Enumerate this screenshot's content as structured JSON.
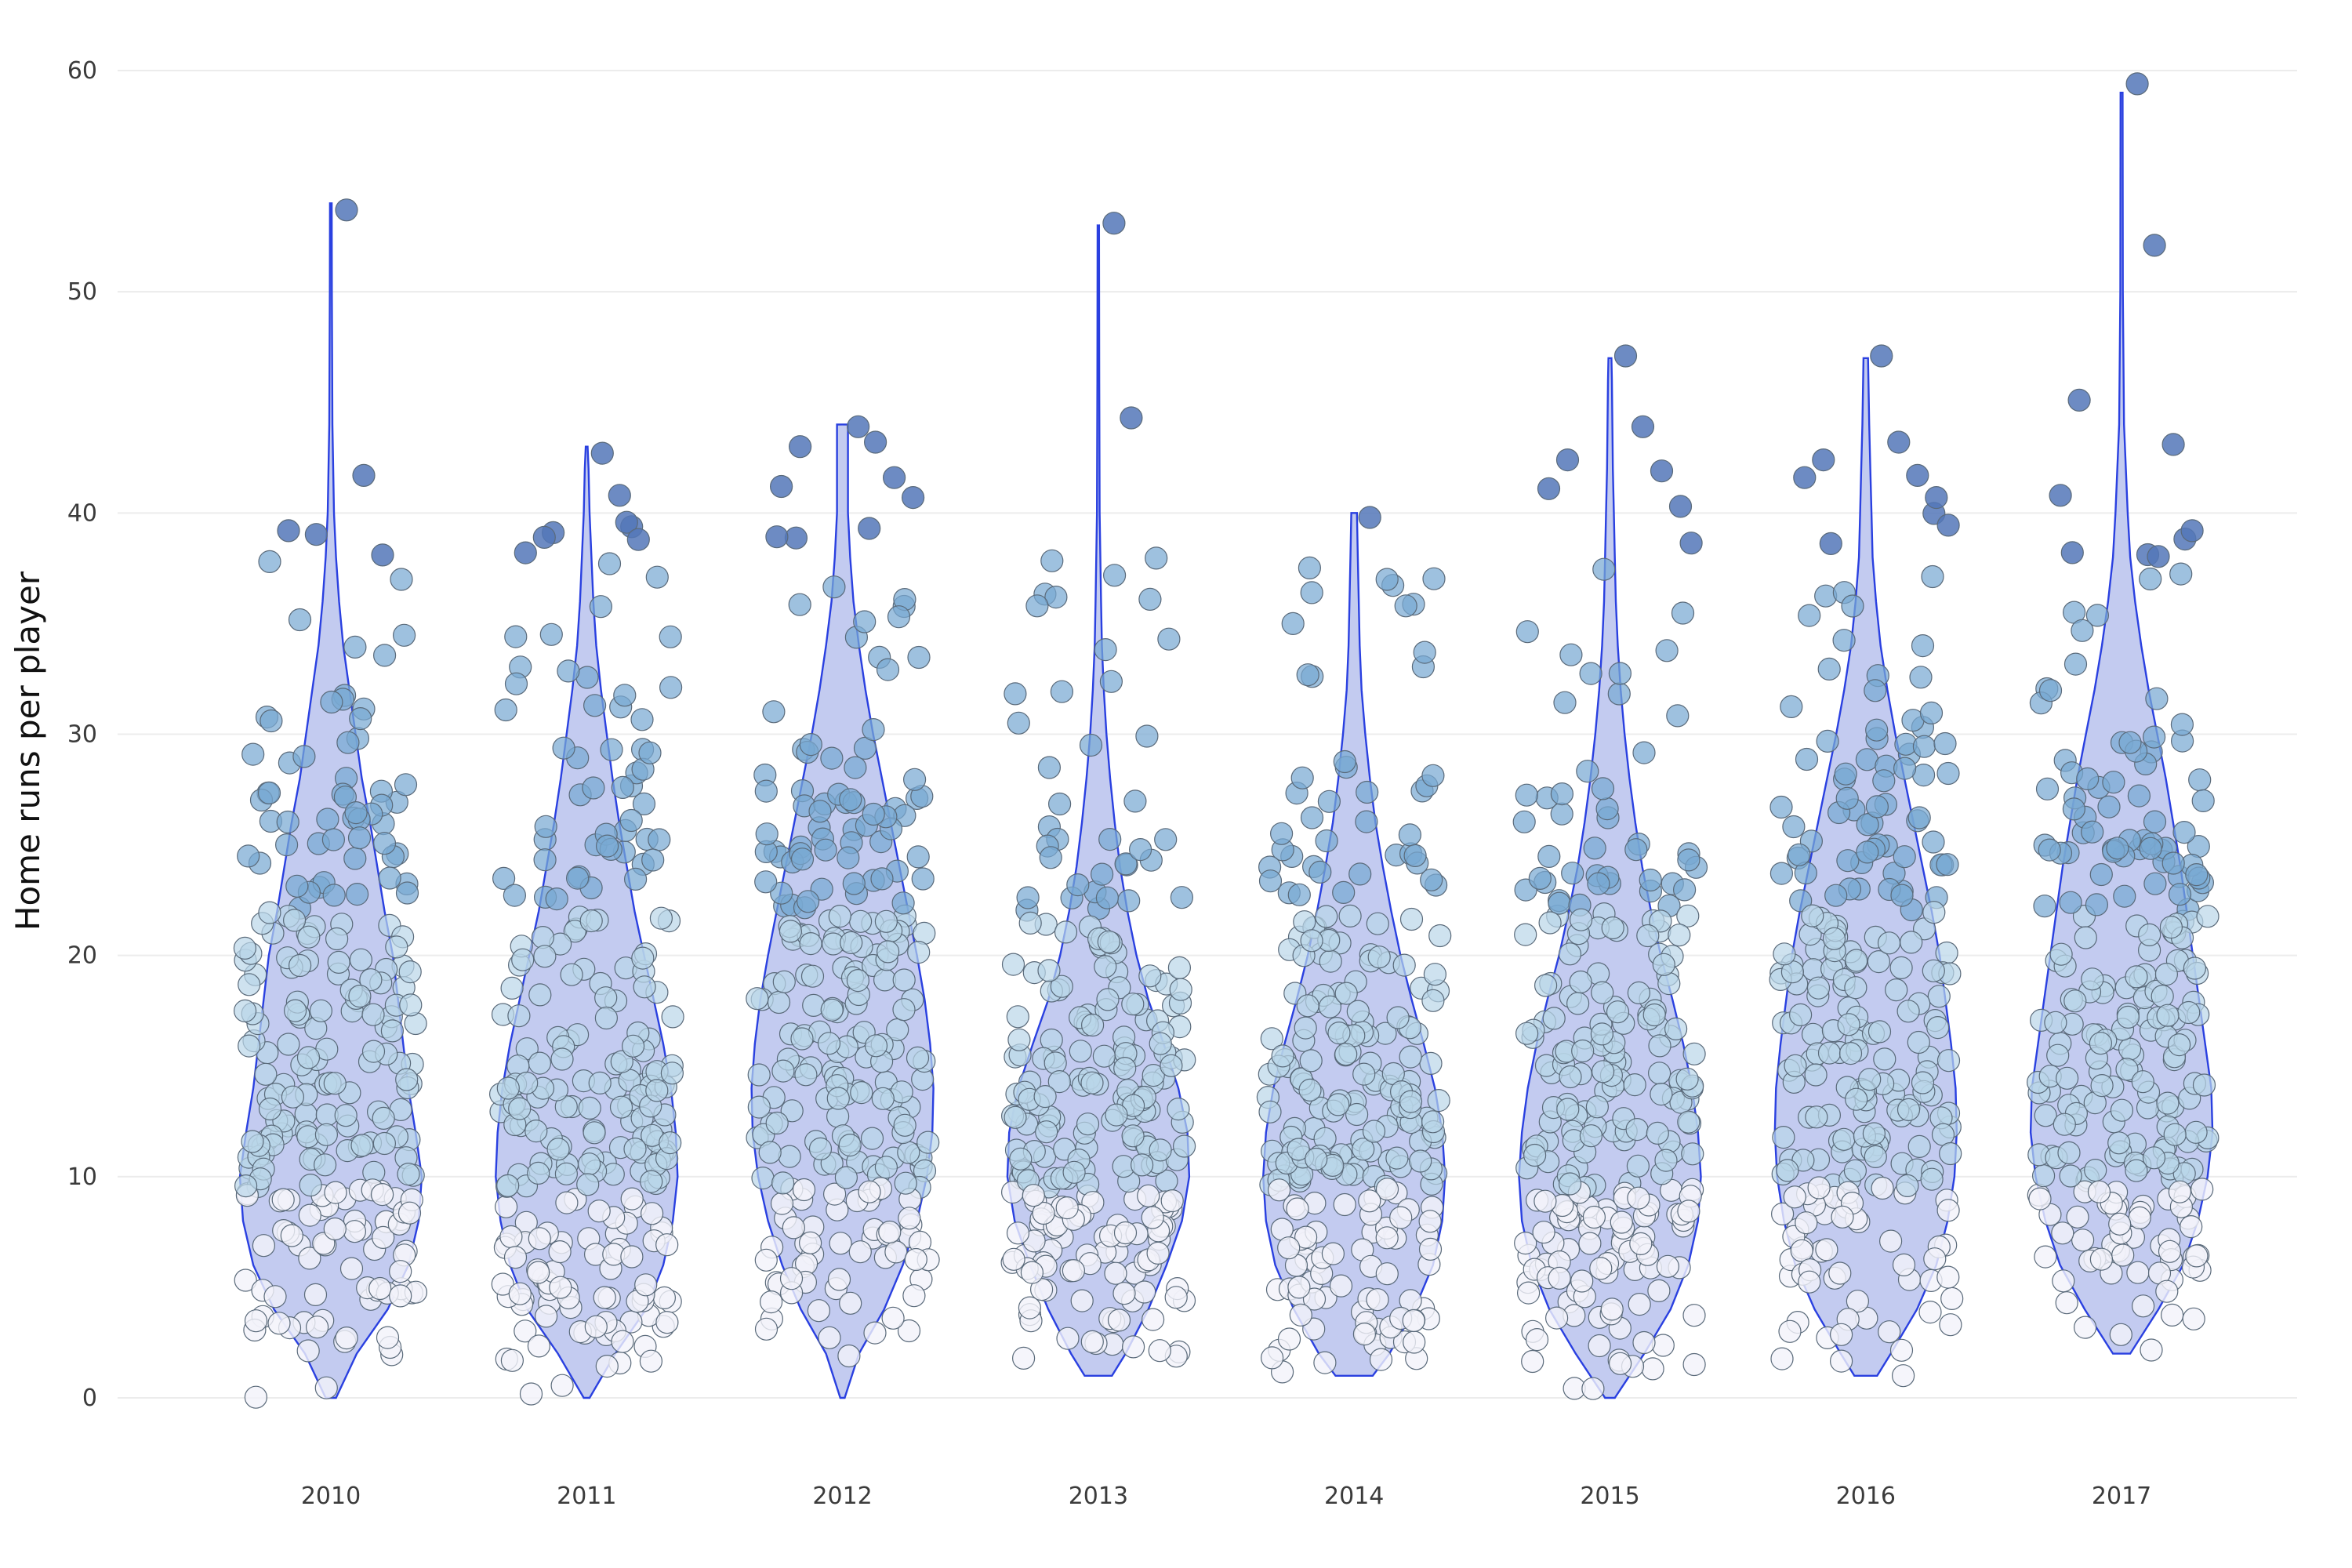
{
  "chart_data": {
    "type": "violin",
    "ylabel": "Home runs per player",
    "ylim": [
      0,
      60
    ],
    "yticks": [
      0,
      10,
      20,
      30,
      40,
      50,
      60
    ],
    "categories": [
      "2010",
      "2011",
      "2012",
      "2013",
      "2014",
      "2015",
      "2016",
      "2017"
    ],
    "grid": true,
    "point_color_scale": [
      "#f2f2fa",
      "#b9d6e8",
      "#79a9d3",
      "#5477b8"
    ],
    "violin_fill": "#c3cbf0",
    "violin_stroke": "#2a40e0",
    "series": [
      {
        "category": "2010",
        "min": 0,
        "max": 54,
        "notable_points": [
          53.7,
          41.7,
          39.2,
          38.1,
          37.8,
          37
        ],
        "density": [
          [
            0,
            0.05
          ],
          [
            2,
            0.25
          ],
          [
            4,
            0.55
          ],
          [
            6,
            0.75
          ],
          [
            8,
            0.85
          ],
          [
            10,
            0.88
          ],
          [
            12,
            0.82
          ],
          [
            14,
            0.75
          ],
          [
            16,
            0.7
          ],
          [
            18,
            0.65
          ],
          [
            20,
            0.6
          ],
          [
            22,
            0.52
          ],
          [
            24,
            0.45
          ],
          [
            26,
            0.38
          ],
          [
            28,
            0.3
          ],
          [
            30,
            0.24
          ],
          [
            32,
            0.18
          ],
          [
            34,
            0.12
          ],
          [
            36,
            0.08
          ],
          [
            38,
            0.05
          ],
          [
            40,
            0.03
          ],
          [
            44,
            0.015
          ],
          [
            50,
            0.01
          ],
          [
            54,
            0.008
          ]
        ]
      },
      {
        "category": "2011",
        "min": 0,
        "max": 43,
        "notable_points": [
          42.7,
          40.8,
          38.9,
          38.8,
          38.2,
          37.1
        ],
        "density": [
          [
            0,
            0.03
          ],
          [
            2,
            0.3
          ],
          [
            4,
            0.62
          ],
          [
            6,
            0.8
          ],
          [
            8,
            0.9
          ],
          [
            10,
            0.95
          ],
          [
            12,
            0.93
          ],
          [
            14,
            0.88
          ],
          [
            16,
            0.8
          ],
          [
            18,
            0.7
          ],
          [
            20,
            0.6
          ],
          [
            22,
            0.5
          ],
          [
            24,
            0.42
          ],
          [
            26,
            0.34
          ],
          [
            28,
            0.27
          ],
          [
            30,
            0.21
          ],
          [
            32,
            0.15
          ],
          [
            34,
            0.1
          ],
          [
            36,
            0.07
          ],
          [
            38,
            0.05
          ],
          [
            40,
            0.03
          ],
          [
            42,
            0.02
          ],
          [
            43,
            0.01
          ]
        ]
      },
      {
        "category": "2012",
        "min": 0,
        "max": 44,
        "notable_points": [
          43.9,
          43.2,
          43,
          41.6,
          41.2,
          40.7
        ],
        "density": [
          [
            0,
            0.02
          ],
          [
            2,
            0.15
          ],
          [
            4,
            0.38
          ],
          [
            6,
            0.55
          ],
          [
            8,
            0.68
          ],
          [
            10,
            0.77
          ],
          [
            12,
            0.82
          ],
          [
            14,
            0.83
          ],
          [
            16,
            0.8
          ],
          [
            18,
            0.75
          ],
          [
            20,
            0.68
          ],
          [
            22,
            0.6
          ],
          [
            24,
            0.52
          ],
          [
            26,
            0.44
          ],
          [
            28,
            0.36
          ],
          [
            30,
            0.28
          ],
          [
            32,
            0.21
          ],
          [
            34,
            0.15
          ],
          [
            36,
            0.1
          ],
          [
            38,
            0.07
          ],
          [
            40,
            0.05
          ],
          [
            42,
            0.05
          ],
          [
            44,
            0.05
          ]
        ]
      },
      {
        "category": "2013",
        "min": 1,
        "max": 53,
        "notable_points": [
          53.1,
          44.3,
          36.2,
          36.1,
          35.8,
          34.3
        ],
        "density": [
          [
            1,
            0.15
          ],
          [
            2,
            0.3
          ],
          [
            4,
            0.55
          ],
          [
            6,
            0.75
          ],
          [
            8,
            0.92
          ],
          [
            10,
            1.0
          ],
          [
            12,
            0.98
          ],
          [
            14,
            0.88
          ],
          [
            16,
            0.72
          ],
          [
            18,
            0.55
          ],
          [
            20,
            0.42
          ],
          [
            22,
            0.32
          ],
          [
            24,
            0.24
          ],
          [
            26,
            0.18
          ],
          [
            28,
            0.13
          ],
          [
            30,
            0.09
          ],
          [
            32,
            0.06
          ],
          [
            34,
            0.04
          ],
          [
            36,
            0.03
          ],
          [
            40,
            0.015
          ],
          [
            46,
            0.01
          ],
          [
            53,
            0.008
          ]
        ]
      },
      {
        "category": "2014",
        "min": 1,
        "max": 40,
        "notable_points": [
          39.8,
          37,
          36.4,
          35.8,
          35,
          33.7
        ],
        "density": [
          [
            1,
            0.2
          ],
          [
            2,
            0.38
          ],
          [
            4,
            0.65
          ],
          [
            6,
            0.85
          ],
          [
            8,
            0.95
          ],
          [
            10,
            0.98
          ],
          [
            12,
            0.95
          ],
          [
            14,
            0.87
          ],
          [
            16,
            0.75
          ],
          [
            18,
            0.62
          ],
          [
            20,
            0.5
          ],
          [
            22,
            0.4
          ],
          [
            24,
            0.31
          ],
          [
            26,
            0.23
          ],
          [
            28,
            0.17
          ],
          [
            30,
            0.12
          ],
          [
            32,
            0.08
          ],
          [
            34,
            0.06
          ],
          [
            36,
            0.05
          ],
          [
            38,
            0.04
          ],
          [
            40,
            0.03
          ]
        ]
      },
      {
        "category": "2015",
        "min": 0,
        "max": 47,
        "notable_points": [
          47.1,
          43.9,
          42.4,
          41.9,
          41.1,
          40.3
        ],
        "density": [
          [
            0,
            0.05
          ],
          [
            2,
            0.35
          ],
          [
            4,
            0.62
          ],
          [
            6,
            0.8
          ],
          [
            8,
            0.9
          ],
          [
            10,
            0.93
          ],
          [
            12,
            0.9
          ],
          [
            14,
            0.84
          ],
          [
            16,
            0.75
          ],
          [
            18,
            0.64
          ],
          [
            20,
            0.52
          ],
          [
            22,
            0.42
          ],
          [
            24,
            0.33
          ],
          [
            26,
            0.26
          ],
          [
            28,
            0.2
          ],
          [
            30,
            0.15
          ],
          [
            32,
            0.11
          ],
          [
            34,
            0.08
          ],
          [
            36,
            0.06
          ],
          [
            38,
            0.05
          ],
          [
            40,
            0.04
          ],
          [
            42,
            0.03
          ],
          [
            44,
            0.025
          ],
          [
            46,
            0.02
          ],
          [
            47,
            0.015
          ]
        ]
      },
      {
        "category": "2016",
        "min": 1,
        "max": 47,
        "notable_points": [
          47.1,
          43.2,
          42.4,
          41.7,
          41.6,
          40.7
        ],
        "density": [
          [
            1,
            0.1
          ],
          [
            2,
            0.22
          ],
          [
            4,
            0.45
          ],
          [
            6,
            0.62
          ],
          [
            8,
            0.72
          ],
          [
            10,
            0.78
          ],
          [
            12,
            0.8
          ],
          [
            14,
            0.79
          ],
          [
            16,
            0.75
          ],
          [
            18,
            0.7
          ],
          [
            20,
            0.65
          ],
          [
            22,
            0.58
          ],
          [
            24,
            0.5
          ],
          [
            26,
            0.42
          ],
          [
            28,
            0.34
          ],
          [
            30,
            0.26
          ],
          [
            32,
            0.19
          ],
          [
            34,
            0.13
          ],
          [
            36,
            0.09
          ],
          [
            38,
            0.06
          ],
          [
            40,
            0.05
          ],
          [
            42,
            0.04
          ],
          [
            44,
            0.03
          ],
          [
            47,
            0.02
          ]
        ]
      },
      {
        "category": "2017",
        "min": 2,
        "max": 59,
        "notable_points": [
          59.4,
          52.1,
          45.1,
          43.1,
          40.8,
          39.2
        ],
        "density": [
          [
            2,
            0.07
          ],
          [
            4,
            0.3
          ],
          [
            6,
            0.5
          ],
          [
            8,
            0.62
          ],
          [
            10,
            0.7
          ],
          [
            12,
            0.74
          ],
          [
            14,
            0.73
          ],
          [
            16,
            0.68
          ],
          [
            18,
            0.63
          ],
          [
            20,
            0.58
          ],
          [
            22,
            0.53
          ],
          [
            24,
            0.48
          ],
          [
            26,
            0.42
          ],
          [
            28,
            0.36
          ],
          [
            30,
            0.29
          ],
          [
            32,
            0.22
          ],
          [
            34,
            0.16
          ],
          [
            36,
            0.11
          ],
          [
            38,
            0.07
          ],
          [
            40,
            0.05
          ],
          [
            44,
            0.02
          ],
          [
            50,
            0.01
          ],
          [
            59,
            0.008
          ]
        ]
      }
    ]
  }
}
